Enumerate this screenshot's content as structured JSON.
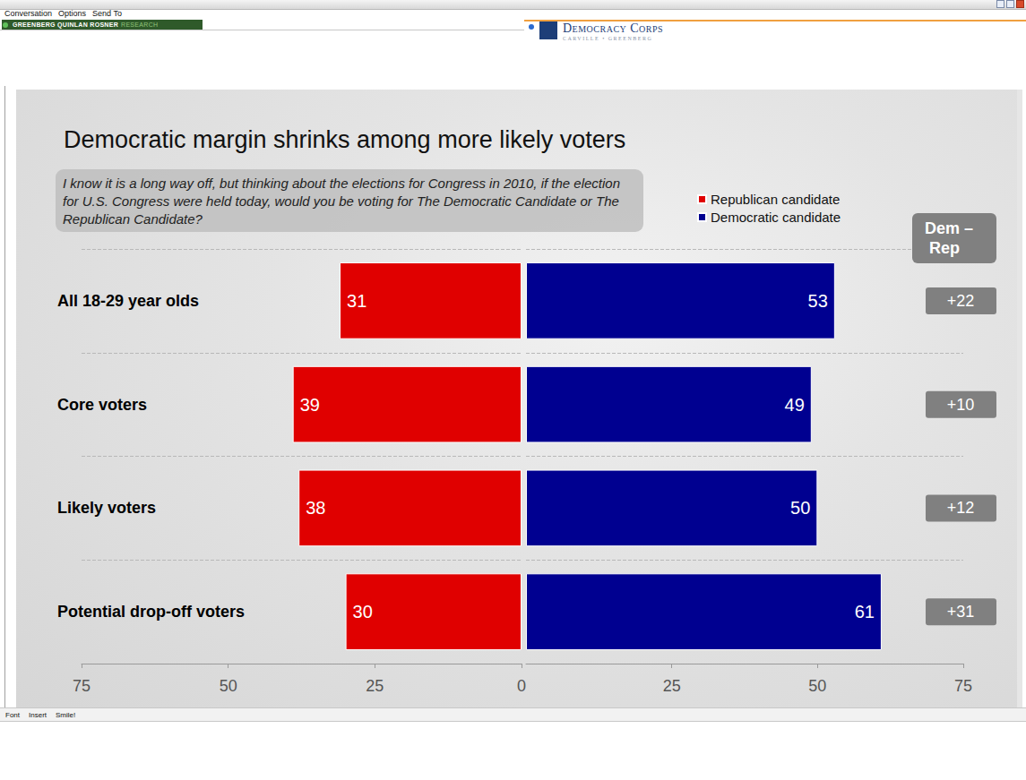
{
  "window": {
    "menu": [
      "Conversation",
      "Options",
      "Send To"
    ],
    "banner": [
      "GREENBERG QUINLAN ROSNER",
      "RESEARCH"
    ],
    "logo": "Democracy Corps",
    "logo_sub": "CARVILLE • GREENBERG",
    "toolbar": [
      "Font",
      "Insert",
      "Smile!"
    ]
  },
  "chart_data": {
    "type": "bar",
    "orientation": "horizontal",
    "title": "Democratic margin shrinks among more likely voters",
    "subtitle": "I know it is a long way off, but thinking about the elections for Congress in 2010, if the election for U.S. Congress were held today, would you be voting for The Democratic Candidate or The Republican Candidate?",
    "categories": [
      "All 18-29 year olds",
      "Core voters",
      "Likely voters",
      "Potential drop-off voters"
    ],
    "series": [
      {
        "name": "Republican candidate",
        "color": "#e00000",
        "values": [
          31,
          39,
          38,
          30
        ]
      },
      {
        "name": "Democratic candidate",
        "color": "#000090",
        "values": [
          53,
          49,
          50,
          61
        ]
      }
    ],
    "xlim": [
      0,
      75
    ],
    "xticks": [
      0,
      25,
      50,
      75
    ],
    "grid": true,
    "data_labels": true,
    "legend": "top-right",
    "margin_title": "Dem – Rep",
    "margins": [
      {
        "value": 22,
        "label": "+22"
      },
      {
        "value": 10,
        "label": "+10"
      },
      {
        "value": 12,
        "label": "+12"
      },
      {
        "value": 31,
        "label": "+31"
      }
    ]
  }
}
